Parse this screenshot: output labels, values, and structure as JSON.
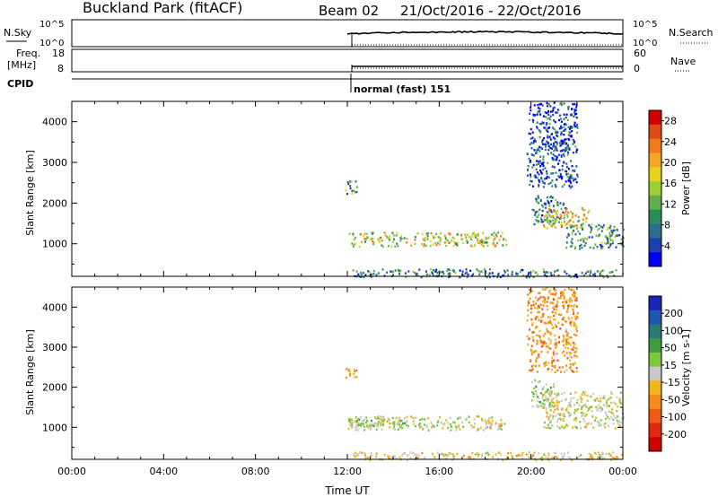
{
  "header": {
    "station": "Buckland Park (fitACF)",
    "beam": "Beam 02",
    "dates": "21/Oct/2016 - 22/Oct/2016"
  },
  "status": {
    "nsky_label": "N.Sky",
    "nsky_ticks": [
      "10^5",
      "10^0"
    ],
    "nsearch_label": "N.Search",
    "nsearch_ticks": [
      "10^5",
      "10^0"
    ],
    "freq_label": "Freq.",
    "freq_unit": "[MHz]",
    "freq_ticks": [
      "18",
      "8"
    ],
    "nave_label": "Nave",
    "nave_ticks": [
      "60",
      "0"
    ],
    "cpid_label": "CPID",
    "cpid_value": "normal (fast) 151"
  },
  "colors": {
    "power": [
      "#0000ff",
      "#1e3fb4",
      "#2e6e8c",
      "#2c8c5c",
      "#5fb04c",
      "#9ccd38",
      "#e6d21e",
      "#f5a623",
      "#f07a1c",
      "#e04a16",
      "#d00000"
    ],
    "velocity": [
      "#1c24b8",
      "#1f54b4",
      "#2a7a74",
      "#3e9e3e",
      "#7cc83c",
      "#c8c8c8",
      "#f0b41e",
      "#f58c1a",
      "#f05a14",
      "#e02a10",
      "#d00000"
    ]
  },
  "chart_data": [
    {
      "type": "heatmap",
      "panel": "power",
      "xlabel": "Time UT",
      "ylabel": "Slant Range [km]",
      "xlim": [
        "00:00",
        "24:00"
      ],
      "ylim": [
        200,
        4500
      ],
      "x_ticks": [
        "00:00",
        "04:00",
        "08:00",
        "12:00",
        "16:00",
        "20:00",
        "00:00"
      ],
      "y_ticks": [
        1000,
        2000,
        3000,
        4000
      ],
      "colorbar": {
        "label": "Power [dB]",
        "ticks": [
          4,
          8,
          12,
          16,
          20,
          24,
          28
        ],
        "range": [
          0,
          30
        ]
      },
      "regions": [
        {
          "t": [
            11.9,
            12.4
          ],
          "r": [
            2250,
            2600
          ],
          "value": 10
        },
        {
          "t": [
            12.0,
            18.9
          ],
          "r": [
            950,
            1300
          ],
          "value": 16
        },
        {
          "t": [
            12.0,
            24.0
          ],
          "r": [
            200,
            400
          ],
          "value": 8
        },
        {
          "t": [
            20.0,
            21.5
          ],
          "r": [
            1500,
            2200
          ],
          "value": 9
        },
        {
          "t": [
            20.5,
            22.5
          ],
          "r": [
            1400,
            1900
          ],
          "value": 18
        },
        {
          "t": [
            21.5,
            24.0
          ],
          "r": [
            900,
            1500
          ],
          "value": 10
        },
        {
          "t": [
            20.8,
            22.0
          ],
          "r": [
            3300,
            3600
          ],
          "value": 6
        },
        {
          "t": [
            19.8,
            22.0
          ],
          "r": [
            2400,
            4500
          ],
          "value": 5
        }
      ]
    },
    {
      "type": "heatmap",
      "panel": "velocity",
      "xlabel": "Time UT",
      "ylabel": "Slant Range [km]",
      "xlim": [
        "00:00",
        "24:00"
      ],
      "ylim": [
        200,
        4500
      ],
      "x_ticks": [
        "00:00",
        "04:00",
        "08:00",
        "12:00",
        "16:00",
        "20:00",
        "00:00"
      ],
      "y_ticks": [
        1000,
        2000,
        3000,
        4000
      ],
      "colorbar": {
        "label": "Velocity [m s-1]",
        "ticks": [
          200,
          100,
          50,
          15,
          -15,
          -50,
          -100,
          -200
        ],
        "range": [
          -250,
          250
        ]
      },
      "regions": [
        {
          "t": [
            11.9,
            12.4
          ],
          "r": [
            2250,
            2600
          ],
          "value": -60
        },
        {
          "t": [
            12.0,
            18.9
          ],
          "r": [
            950,
            1300
          ],
          "value": 5
        },
        {
          "t": [
            12.0,
            14.5
          ],
          "r": [
            1050,
            1250
          ],
          "value": 40
        },
        {
          "t": [
            18.0,
            18.9
          ],
          "r": [
            1000,
            1150
          ],
          "value": -60
        },
        {
          "t": [
            12.0,
            24.0
          ],
          "r": [
            200,
            400
          ],
          "value": -30
        },
        {
          "t": [
            20.0,
            21.0
          ],
          "r": [
            1500,
            2200
          ],
          "value": 30
        },
        {
          "t": [
            20.5,
            24.0
          ],
          "r": [
            1000,
            1900
          ],
          "value": 0
        },
        {
          "t": [
            19.8,
            22.0
          ],
          "r": [
            2400,
            4500
          ],
          "value": -80
        }
      ]
    }
  ]
}
